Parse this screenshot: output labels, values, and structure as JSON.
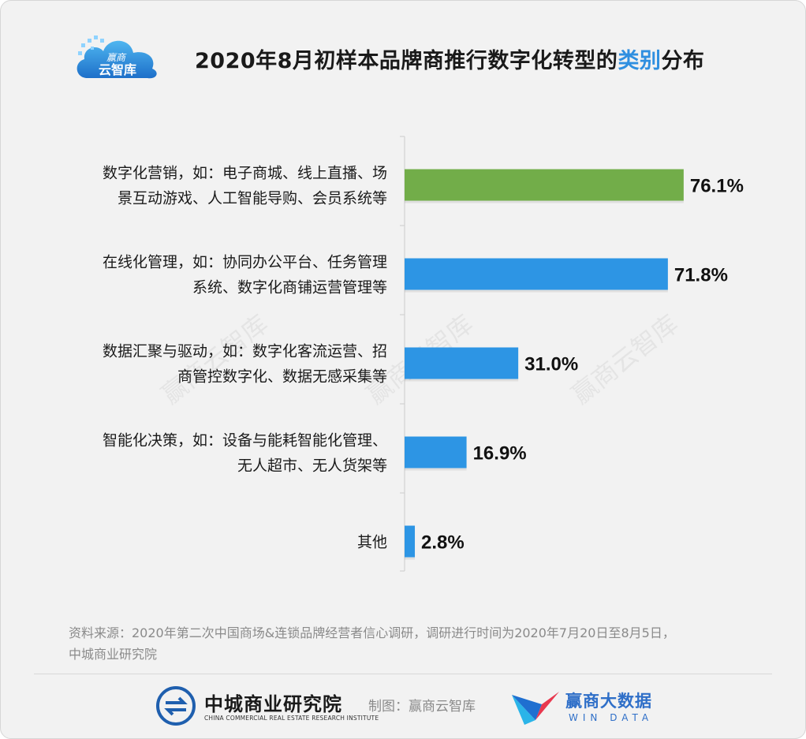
{
  "header": {
    "logo_line1": "赢商",
    "logo_line2": "云智库",
    "title_pre": "2020年8月初样本品牌商推行数字化转型的",
    "title_highlight": "类别",
    "title_post": "分布"
  },
  "watermark": "赢商云智库",
  "colors": {
    "highlight_bar": "#72ad49",
    "bar": "#2d95e4",
    "title_highlight": "#2f8fe0",
    "axis": "#cccccc"
  },
  "chart_data": {
    "type": "bar",
    "orientation": "horizontal",
    "categories": [
      [
        "数字化营销，如：电子商城、线上直播、场",
        "景互动游戏、人工智能导购、会员系统等"
      ],
      [
        "在线化管理，如：协同办公平台、任务管理",
        "系统、数字化商铺运营管理等"
      ],
      [
        "数据汇聚与驱动，如：数字化客流运营、招",
        "商管控数字化、数据无感采集等"
      ],
      [
        "智能化决策，如：设备与能耗智能化管理、",
        "无人超市、无人货架等"
      ],
      [
        "其他"
      ]
    ],
    "values": [
      76.1,
      71.8,
      31.0,
      16.9,
      2.8
    ],
    "value_labels": [
      "76.1%",
      "71.8%",
      "31.0%",
      "16.9%",
      "2.8%"
    ],
    "highlight_index": 0,
    "xlim": [
      0,
      80
    ],
    "grid": false,
    "legend": "none"
  },
  "source": {
    "line1": "资料来源：2020年第二次中国商场&连锁品牌经营者信心调研，调研进行时间为2020年7月20日至8月5日，",
    "line2": "中城商业研究院"
  },
  "footer": {
    "org_name": "中城商业研究院",
    "org_name_en": "CHINA COMMERCIAL REAL ESTATE RESEARCH INSTITUTE",
    "credit": "制图：赢商云智库",
    "brand": "赢商大数据",
    "brand_en": "WIN DATA"
  }
}
